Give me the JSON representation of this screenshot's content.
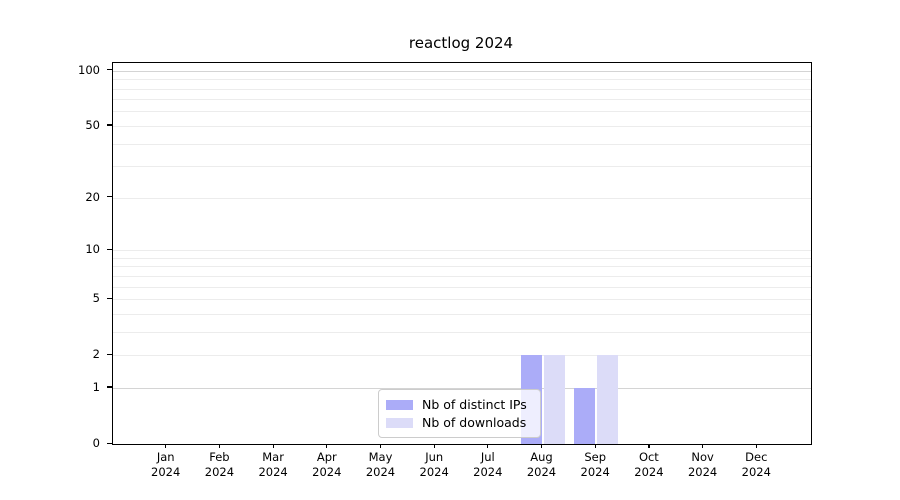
{
  "chart_data": {
    "type": "bar",
    "title": "reactlog 2024",
    "categories": [
      "Jan 2024",
      "Feb 2024",
      "Mar 2024",
      "Apr 2024",
      "May 2024",
      "Jun 2024",
      "Jul 2024",
      "Aug 2024",
      "Sep 2024",
      "Oct 2024",
      "Nov 2024",
      "Dec 2024"
    ],
    "series": [
      {
        "name": "Nb of distinct IPs",
        "color": "#abacf8",
        "values": [
          0,
          0,
          0,
          0,
          0,
          0,
          0,
          2,
          1,
          0,
          0,
          0
        ]
      },
      {
        "name": "Nb of downloads",
        "color": "#dcdcf8",
        "values": [
          0,
          0,
          0,
          0,
          0,
          0,
          0,
          2,
          2,
          0,
          0,
          0
        ]
      }
    ],
    "xlabel": "",
    "ylabel": "",
    "yscale": "log1p",
    "ylim": [
      0,
      110
    ],
    "y_ticks": [
      0,
      1,
      2,
      5,
      10,
      20,
      50,
      100
    ],
    "grid": "horizontal",
    "grid_values": [
      1,
      2,
      3,
      4,
      5,
      6,
      7,
      8,
      9,
      10,
      20,
      30,
      40,
      50,
      60,
      70,
      80,
      90,
      100
    ],
    "grid_major_values": [
      1,
      100
    ],
    "legend_position": "inside lower center-right",
    "colors": {
      "grid_minor": "#ececec",
      "grid_major": "#d4d4d4",
      "axis": "#000000",
      "legend_border": "#cccccc"
    }
  }
}
